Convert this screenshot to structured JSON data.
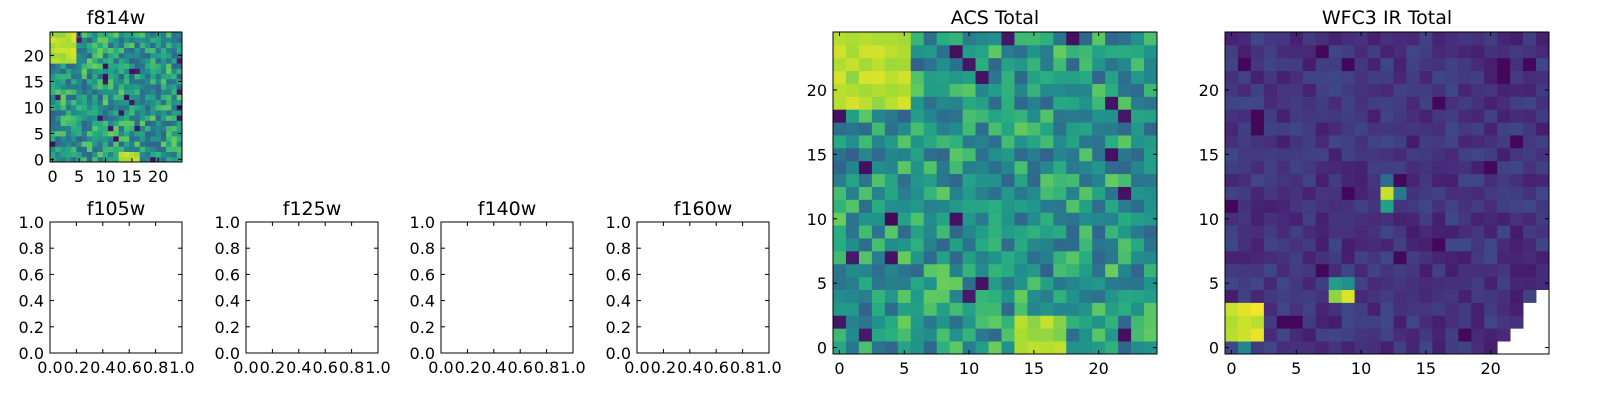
{
  "chart_data": [
    {
      "id": "f814w",
      "type": "heatmap",
      "title": "f814w",
      "colormap": "viridis",
      "xlim": [
        -0.5,
        24.5
      ],
      "ylim": [
        -0.5,
        24.5
      ],
      "xticks": [
        0,
        5,
        10,
        15,
        20
      ],
      "yticks": [
        0,
        5,
        10,
        15,
        20
      ],
      "grid": false,
      "grid_size": 25,
      "features": [
        {
          "label": "bright corner",
          "x": [
            0,
            4
          ],
          "y": [
            19,
            24
          ],
          "level": 0.95
        },
        {
          "label": "bright spot",
          "x": [
            13,
            16
          ],
          "y": [
            0,
            1
          ],
          "level": 0.95
        }
      ]
    },
    {
      "id": "f105w",
      "type": "heatmap",
      "title": "f105w",
      "empty": true,
      "xlim": [
        0,
        1
      ],
      "ylim": [
        0,
        1
      ],
      "xtick_labels": [
        "0.0",
        "0.2",
        "0.4",
        "0.6",
        "0.8",
        "1.0"
      ],
      "ytick_labels": [
        "0.0",
        "0.2",
        "0.4",
        "0.6",
        "0.8",
        "1.0"
      ]
    },
    {
      "id": "f125w",
      "type": "heatmap",
      "title": "f125w",
      "empty": true,
      "xlim": [
        0,
        1
      ],
      "ylim": [
        0,
        1
      ],
      "xtick_labels": [
        "0.0",
        "0.2",
        "0.4",
        "0.6",
        "0.8",
        "1.0"
      ],
      "ytick_labels": [
        "0.0",
        "0.2",
        "0.4",
        "0.6",
        "0.8",
        "1.0"
      ]
    },
    {
      "id": "f140w",
      "type": "heatmap",
      "title": "f140w",
      "empty": true,
      "xlim": [
        0,
        1
      ],
      "ylim": [
        0,
        1
      ],
      "xtick_labels": [
        "0.0",
        "0.2",
        "0.4",
        "0.6",
        "0.8",
        "1.0"
      ],
      "ytick_labels": [
        "0.0",
        "0.2",
        "0.4",
        "0.6",
        "0.8",
        "1.0"
      ]
    },
    {
      "id": "f160w",
      "type": "heatmap",
      "title": "f160w",
      "empty": true,
      "xlim": [
        0,
        1
      ],
      "ylim": [
        0,
        1
      ],
      "xtick_labels": [
        "0.0",
        "0.2",
        "0.4",
        "0.6",
        "0.8",
        "1.0"
      ],
      "ytick_labels": [
        "0.0",
        "0.2",
        "0.4",
        "0.6",
        "0.8",
        "1.0"
      ]
    },
    {
      "id": "acs-total",
      "type": "heatmap",
      "title": "ACS Total",
      "colormap": "viridis",
      "xlim": [
        -0.5,
        24.5
      ],
      "ylim": [
        -0.5,
        24.5
      ],
      "xticks": [
        0,
        5,
        10,
        15,
        20
      ],
      "yticks": [
        0,
        5,
        10,
        15,
        20
      ],
      "grid": false,
      "grid_size": 25,
      "features": [
        {
          "label": "bright corner",
          "x": [
            0,
            5
          ],
          "y": [
            19,
            24
          ],
          "level": 0.95
        },
        {
          "label": "bright bottom",
          "x": [
            14,
            17
          ],
          "y": [
            -0.5,
            2
          ],
          "level": 0.92
        }
      ]
    },
    {
      "id": "wfc3-ir-total",
      "type": "heatmap",
      "title": "WFC3 IR Total",
      "colormap": "viridis",
      "xlim": [
        -0.5,
        24.5
      ],
      "ylim": [
        -0.5,
        24.5
      ],
      "xticks": [
        0,
        5,
        10,
        15,
        20
      ],
      "yticks": [
        0,
        5,
        10,
        15,
        20
      ],
      "grid": false,
      "grid_size": 25,
      "features": [
        {
          "label": "bright source",
          "x": [
            0,
            2
          ],
          "y": [
            1,
            3
          ],
          "level": 1.0
        },
        {
          "label": "source",
          "x": [
            8,
            9
          ],
          "y": [
            4,
            4
          ],
          "level": 0.95
        },
        {
          "label": "source",
          "x": [
            12,
            12
          ],
          "y": [
            12,
            12
          ],
          "level": 0.95
        },
        {
          "label": "source",
          "x": [
            12,
            12
          ],
          "y": [
            11,
            11
          ],
          "level": 0.6
        }
      ],
      "masked_region": "bottom-right corner (white, no data)"
    }
  ]
}
